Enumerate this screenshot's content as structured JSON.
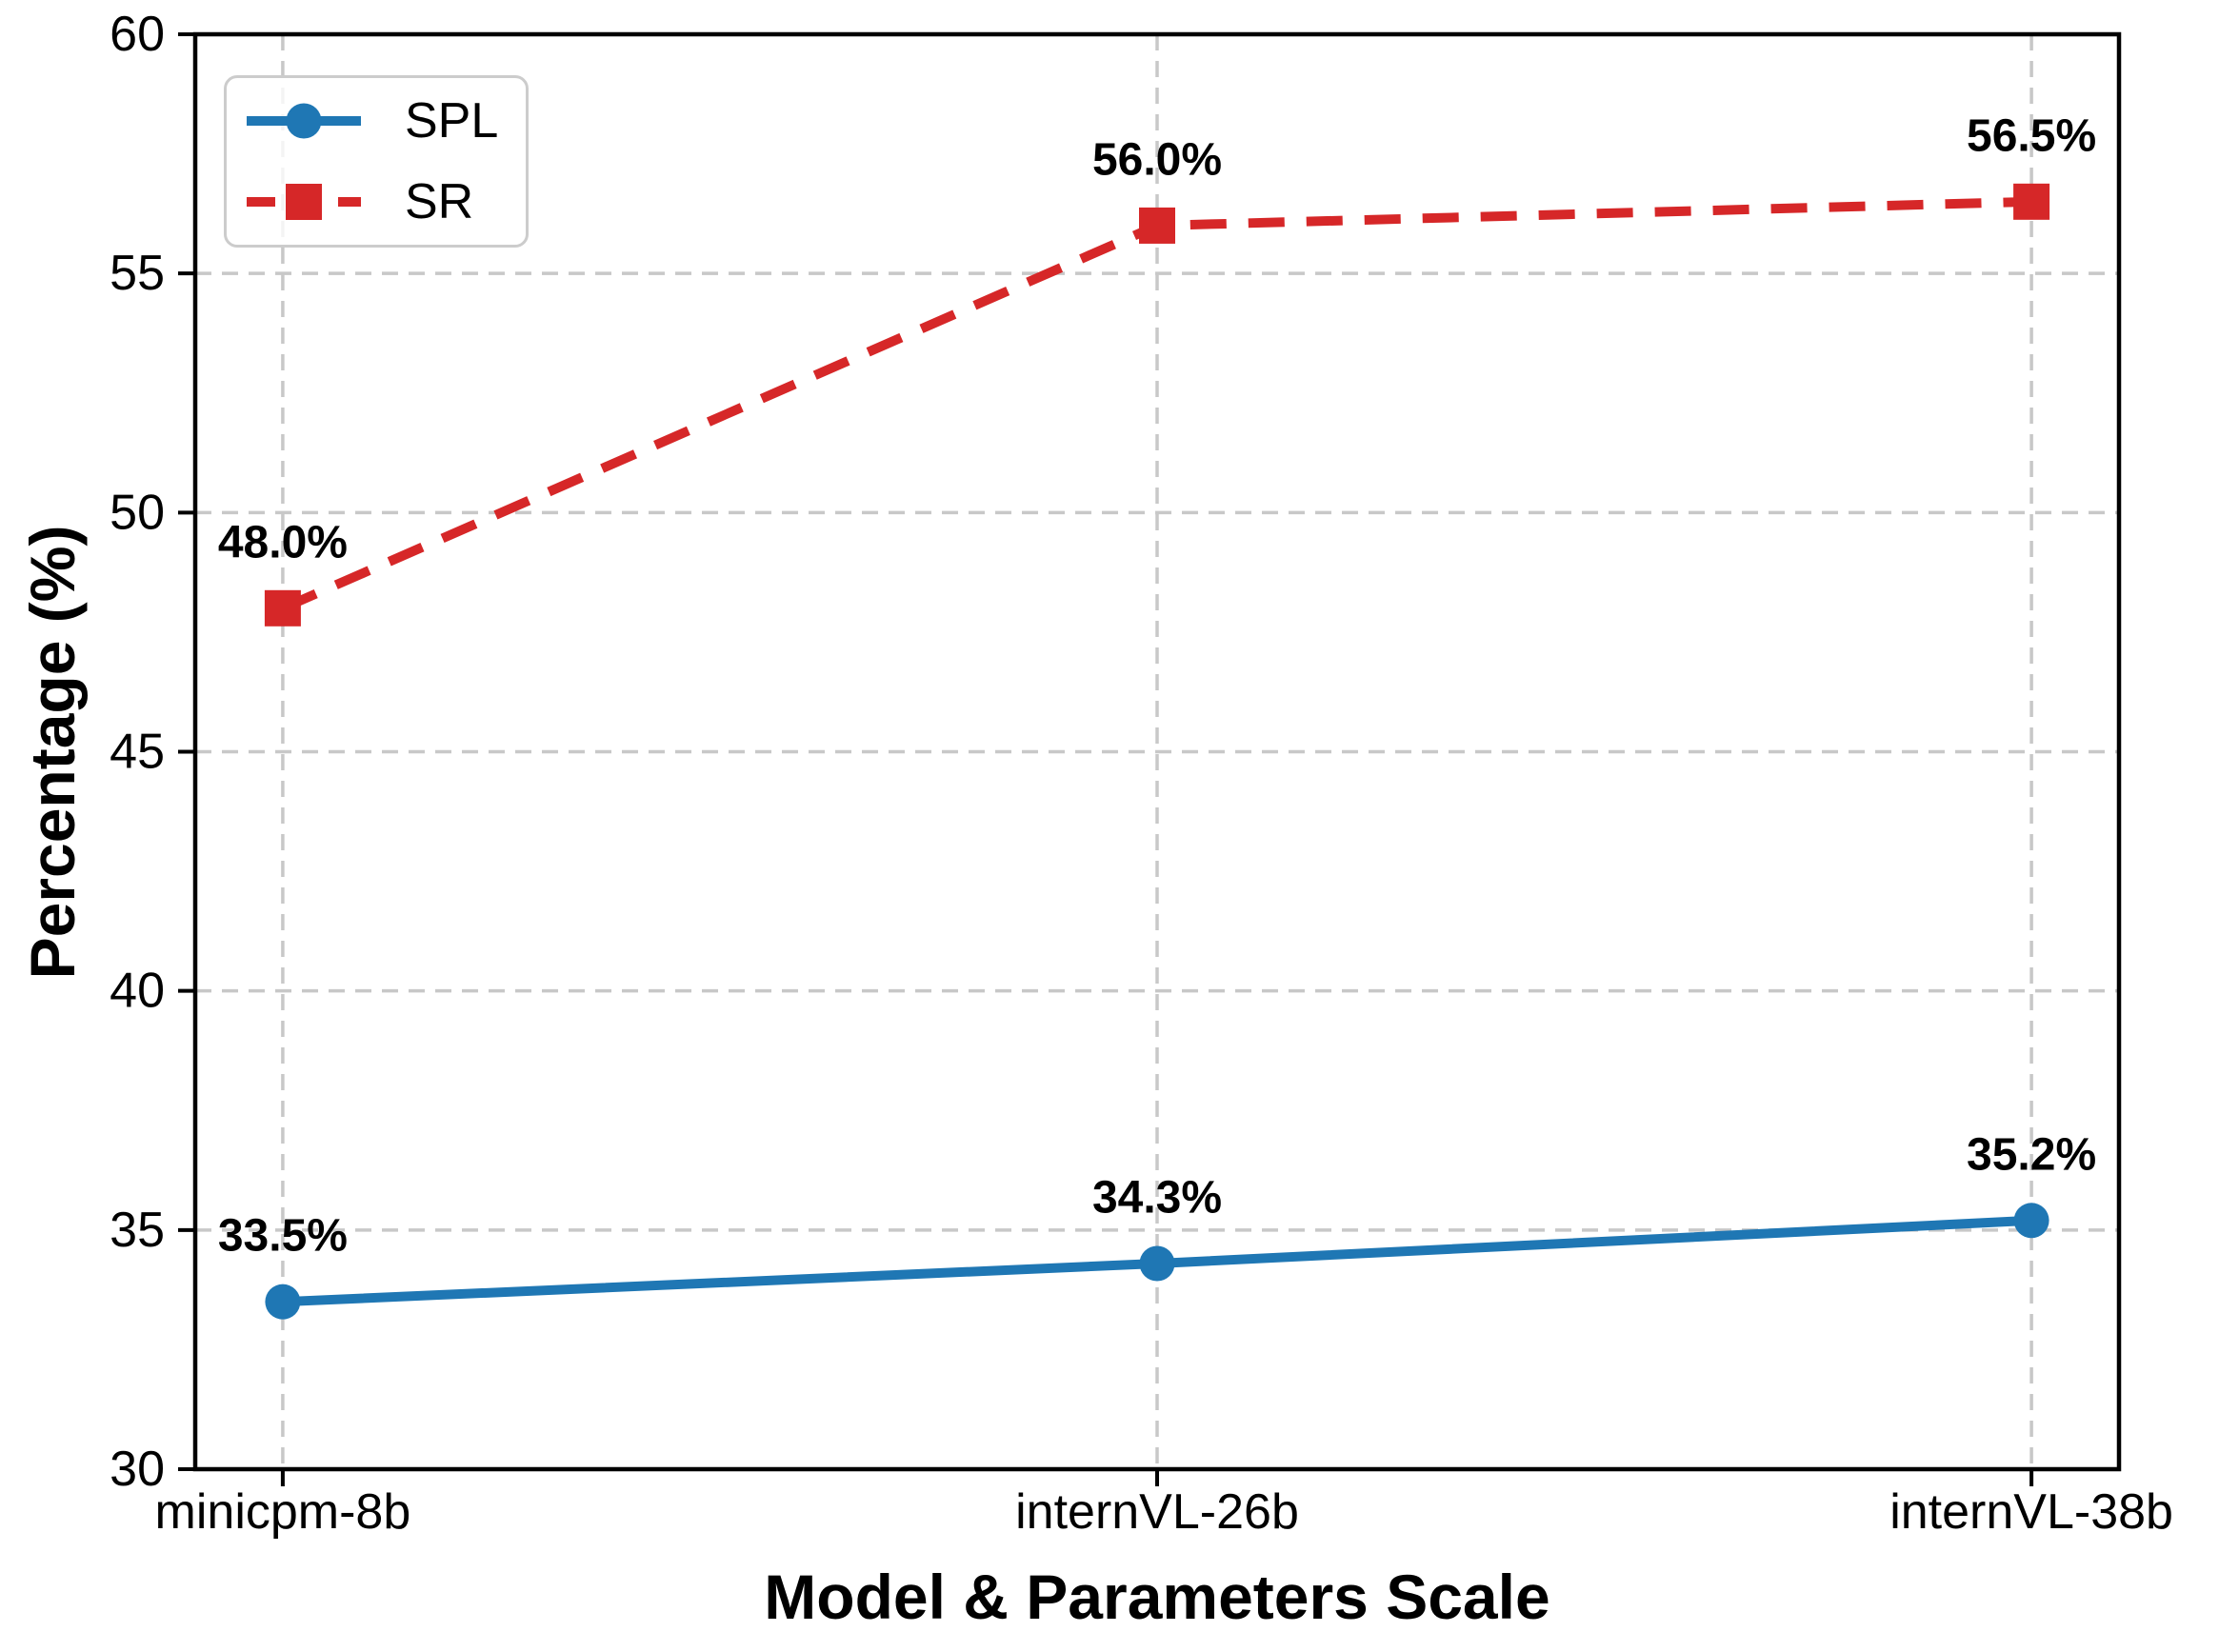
{
  "chart_data": {
    "type": "line",
    "title": "",
    "xlabel": "Model & Parameters Scale",
    "ylabel": "Percentage (%)",
    "categories": [
      "minicpm-8b",
      "internVL-26b",
      "internVL-38b"
    ],
    "ylim": [
      30,
      60
    ],
    "yticks": [
      30,
      35,
      40,
      45,
      50,
      55,
      60
    ],
    "grid": true,
    "grid_color": "#c8c8c8",
    "legend_position": "upper-left",
    "series": [
      {
        "name": "SPL",
        "color": "#1f77b4",
        "marker": "circle",
        "linestyle": "solid",
        "values": [
          33.5,
          34.3,
          35.2
        ],
        "labels": [
          "33.5%",
          "34.3%",
          "35.2%"
        ]
      },
      {
        "name": "SR",
        "color": "#d62728",
        "marker": "square",
        "linestyle": "dashed",
        "values": [
          48.0,
          56.0,
          56.5
        ],
        "labels": [
          "48.0%",
          "56.0%",
          "56.5%"
        ]
      }
    ]
  }
}
